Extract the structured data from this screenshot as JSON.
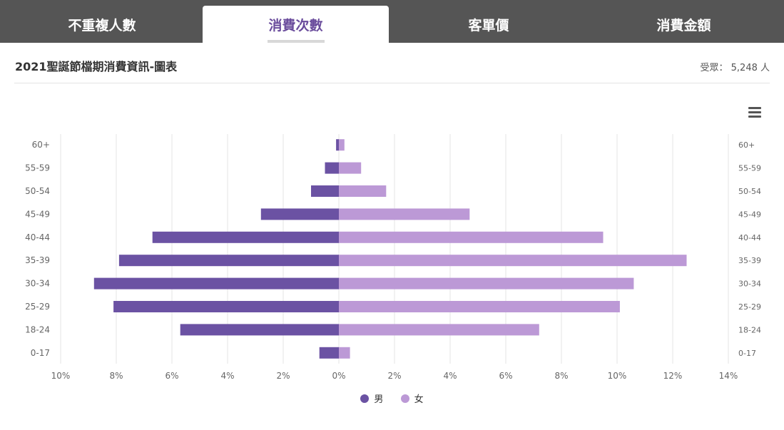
{
  "tabs": [
    {
      "label": "不重複人數",
      "active": false
    },
    {
      "label": "消費次數",
      "active": true
    },
    {
      "label": "客單價",
      "active": false
    },
    {
      "label": "消費金額",
      "active": false
    }
  ],
  "header": {
    "title": "2021聖誕節檔期消費資訊-圖表",
    "count": "受眾： 5,248 人"
  },
  "icons": {
    "menu": "hamburger-menu-icon"
  },
  "colors": {
    "male": "#6b52a3",
    "female": "#bc99d6",
    "active_tab_text": "#6a4c9c",
    "tabbar": "#555555"
  },
  "chart_data": {
    "type": "bar",
    "orientation": "horizontal",
    "categories": [
      "60+",
      "55-59",
      "50-54",
      "45-49",
      "40-44",
      "35-39",
      "30-34",
      "25-29",
      "18-24",
      "0-17"
    ],
    "series": [
      {
        "name": "男",
        "values": [
          0.1,
          0.5,
          1.0,
          2.8,
          6.7,
          7.9,
          8.8,
          8.1,
          5.7,
          0.7
        ]
      },
      {
        "name": "女",
        "values": [
          0.2,
          0.8,
          1.7,
          4.7,
          9.5,
          12.5,
          10.6,
          10.1,
          7.2,
          0.4
        ]
      }
    ],
    "x_ticks": [
      "10%",
      "8%",
      "6%",
      "4%",
      "2%",
      "0%",
      "2%",
      "4%",
      "6%",
      "8%",
      "10%",
      "12%",
      "14%"
    ],
    "xlim": [
      -10,
      14
    ],
    "unit": "%",
    "grid": true,
    "legend": "bottom-center"
  }
}
